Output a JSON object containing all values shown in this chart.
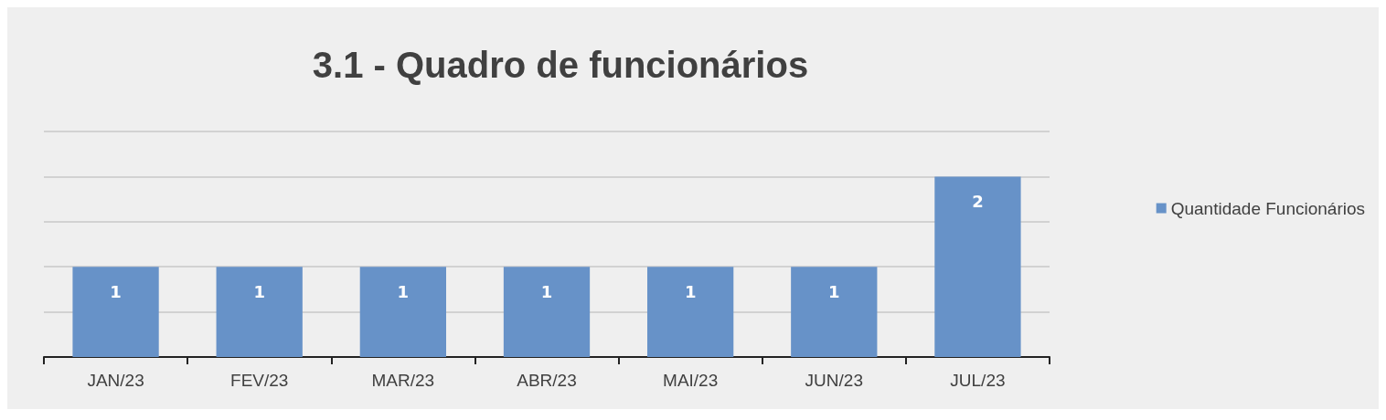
{
  "chart_data": {
    "type": "bar",
    "title": "3.1 - Quadro de funcionários",
    "categories": [
      "JAN/23",
      "FEV/23",
      "MAR/23",
      "ABR/23",
      "MAI/23",
      "JUN/23",
      "JUL/23"
    ],
    "series": [
      {
        "name": "Quantidade Funcionários",
        "color": "#6792c8",
        "values": [
          1,
          1,
          1,
          1,
          1,
          1,
          2
        ]
      }
    ],
    "data_labels": true,
    "legend": "right",
    "grid": "y",
    "tick_labels": "x",
    "ylim": [
      0,
      2.5
    ],
    "yticks": [
      {
        "value": 0,
        "label": null
      },
      {
        "value": 0.5,
        "label": null
      },
      {
        "value": 1,
        "label": null
      },
      {
        "value": 1.5,
        "label": null
      },
      {
        "value": 2,
        "label": null
      },
      {
        "value": 2.5,
        "label": null
      }
    ]
  }
}
